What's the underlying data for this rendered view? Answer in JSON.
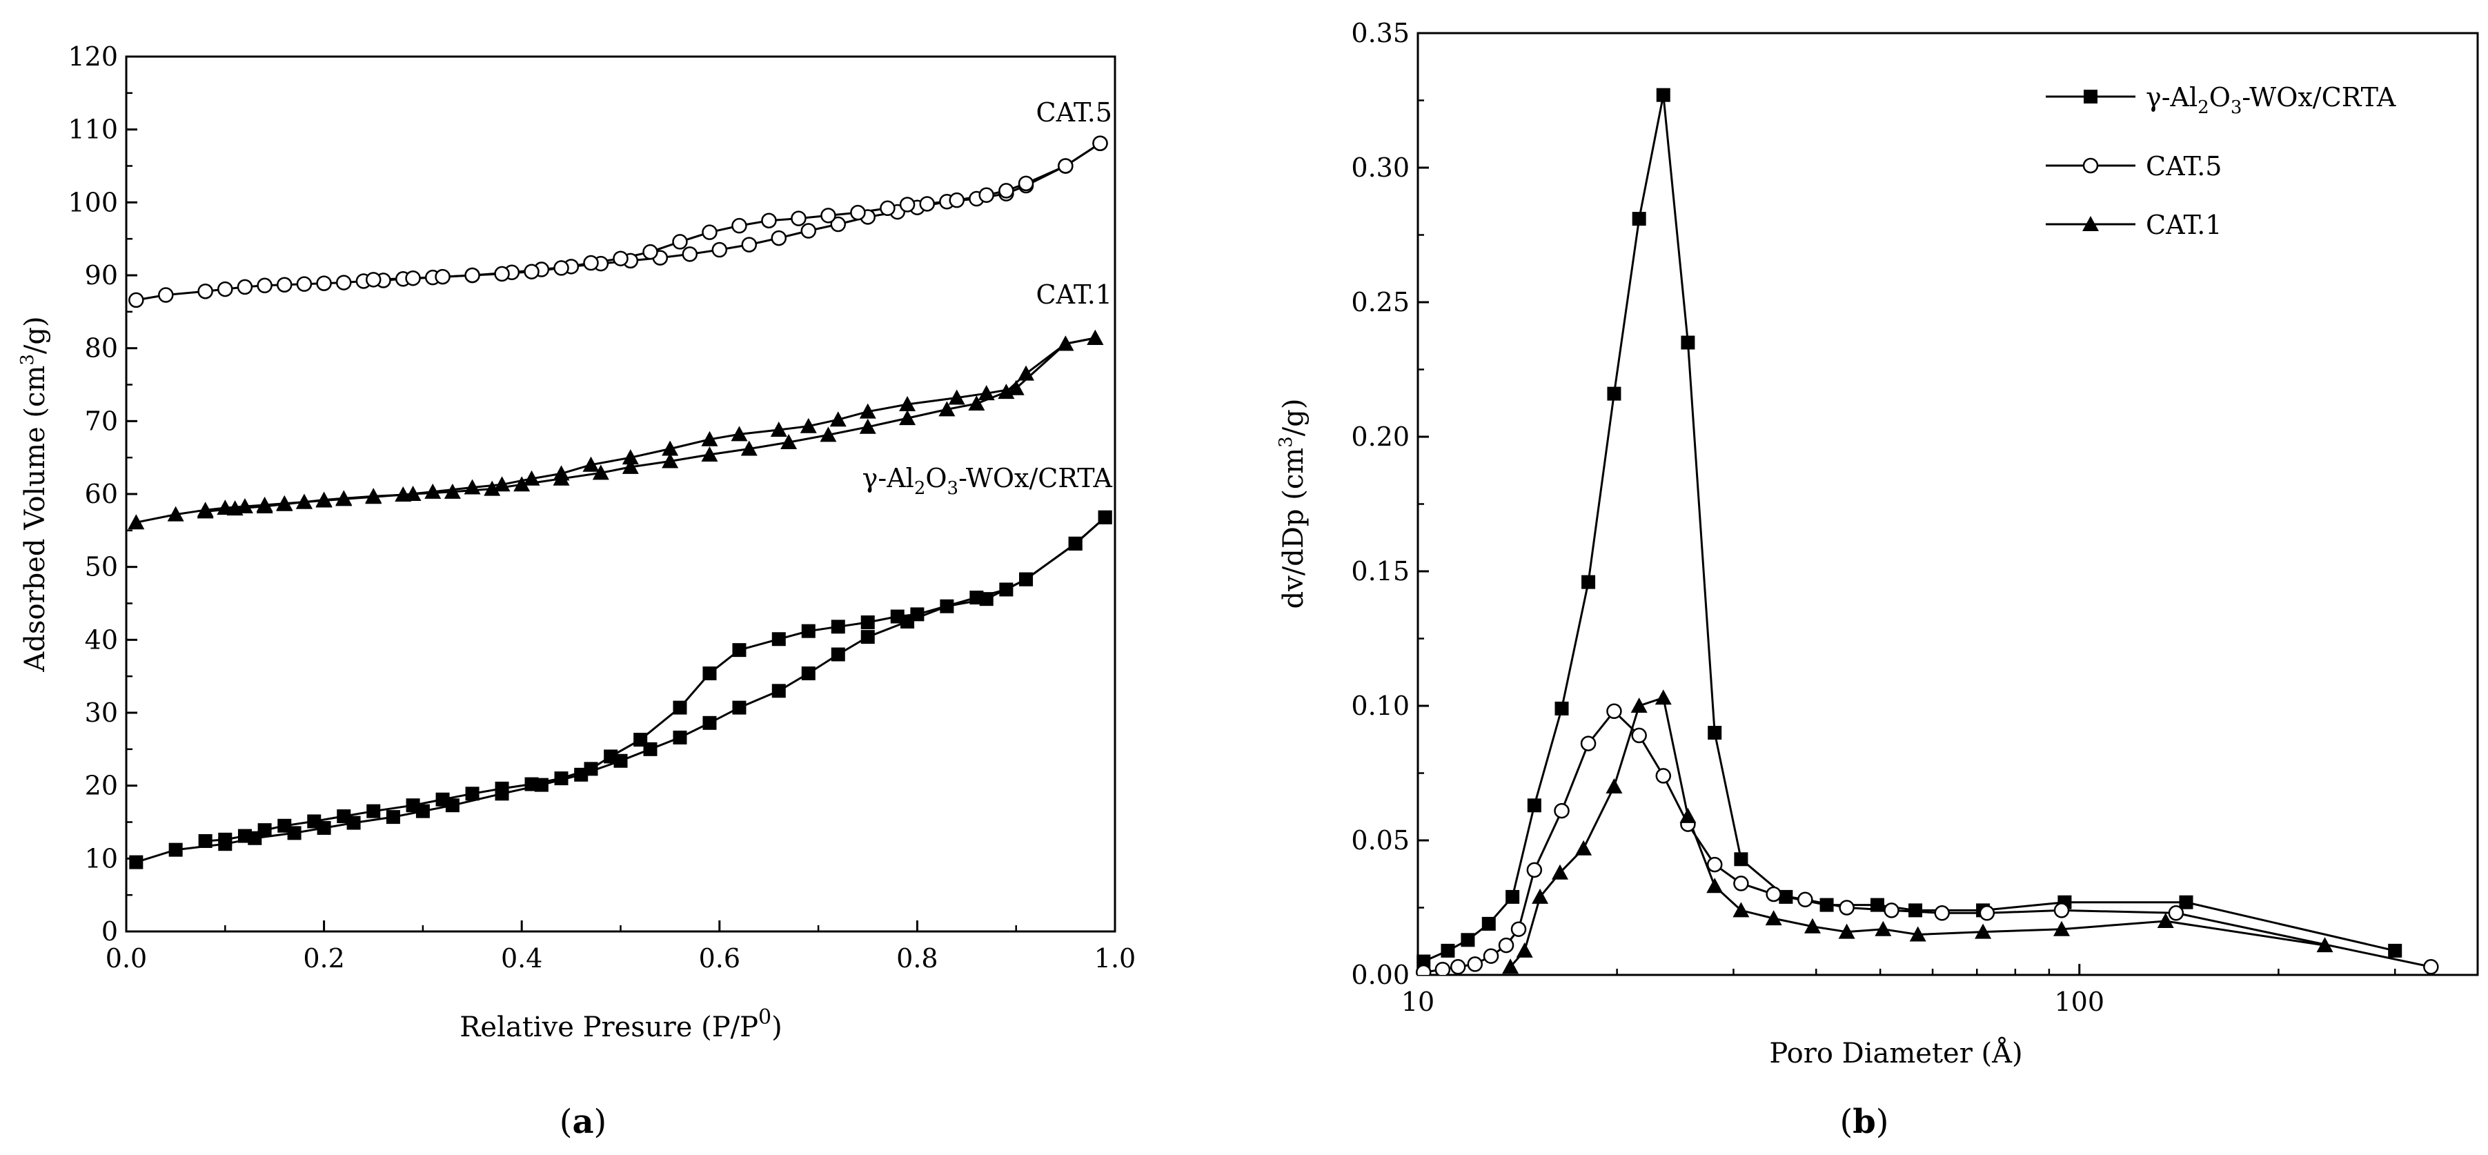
{
  "chart_data": [
    {
      "type": "line",
      "caption": "(a)",
      "xlabel": "Relative Presure (P/P",
      "xlabel_sup": "0",
      "xlabel_end": ")",
      "ylabel": "Adsorbed Volume (cm",
      "ylabel_sup": "3",
      "ylabel_end": "/g)",
      "xlim": [
        0,
        1.0
      ],
      "ylim": [
        0,
        120
      ],
      "xticks": [
        "0.0",
        "0.2",
        "0.4",
        "0.6",
        "0.8",
        "1.0"
      ],
      "yticks": [
        "0",
        "10",
        "20",
        "30",
        "40",
        "50",
        "60",
        "70",
        "80",
        "90",
        "100",
        "110",
        "120"
      ],
      "series": [
        {
          "name": "γ-Al2O3-WOx/CRTA",
          "label_parts": [
            "γ-Al",
            "2",
            "O",
            "3",
            "-WOx/CRTA"
          ],
          "marker": "square",
          "color": "#000000",
          "adsorption": [
            [
              0.01,
              9.5
            ],
            [
              0.05,
              11.2
            ],
            [
              0.1,
              12
            ],
            [
              0.13,
              12.8
            ],
            [
              0.17,
              13.5
            ],
            [
              0.2,
              14.2
            ],
            [
              0.23,
              14.9
            ],
            [
              0.27,
              15.7
            ],
            [
              0.3,
              16.5
            ],
            [
              0.33,
              17.3
            ],
            [
              0.38,
              18.9
            ],
            [
              0.42,
              20.1
            ],
            [
              0.46,
              21.5
            ],
            [
              0.5,
              23.4
            ],
            [
              0.53,
              25
            ],
            [
              0.56,
              26.6
            ],
            [
              0.59,
              28.6
            ],
            [
              0.62,
              30.7
            ],
            [
              0.66,
              33
            ],
            [
              0.69,
              35.4
            ],
            [
              0.72,
              38
            ],
            [
              0.75,
              40.4
            ],
            [
              0.79,
              42.5
            ],
            [
              0.83,
              44.6
            ],
            [
              0.87,
              45.6
            ],
            [
              0.91,
              48.3
            ],
            [
              0.96,
              53.2
            ],
            [
              0.99,
              56.8
            ]
          ],
          "desorption": [
            [
              0.99,
              56.8
            ],
            [
              0.96,
              53.2
            ],
            [
              0.91,
              48.3
            ],
            [
              0.89,
              46.9
            ],
            [
              0.86,
              45.8
            ],
            [
              0.8,
              43.5
            ],
            [
              0.78,
              43.2
            ],
            [
              0.75,
              42.4
            ],
            [
              0.72,
              41.8
            ],
            [
              0.69,
              41.2
            ],
            [
              0.66,
              40.1
            ],
            [
              0.62,
              38.6
            ],
            [
              0.59,
              35.4
            ],
            [
              0.56,
              30.7
            ],
            [
              0.52,
              26.3
            ],
            [
              0.49,
              24
            ],
            [
              0.47,
              22.3
            ],
            [
              0.44,
              21
            ],
            [
              0.41,
              20.2
            ],
            [
              0.38,
              19.6
            ],
            [
              0.35,
              18.9
            ],
            [
              0.32,
              18.1
            ],
            [
              0.29,
              17.3
            ],
            [
              0.25,
              16.5
            ],
            [
              0.22,
              15.8
            ],
            [
              0.19,
              15.1
            ],
            [
              0.16,
              14.5
            ],
            [
              0.14,
              13.9
            ],
            [
              0.12,
              13.1
            ],
            [
              0.1,
              12.6
            ],
            [
              0.08,
              12.4
            ]
          ]
        },
        {
          "name": "CAT.1",
          "marker": "triangle",
          "color": "#000000",
          "adsorption": [
            [
              0.01,
              56.1
            ],
            [
              0.05,
              57.2
            ],
            [
              0.08,
              57.8
            ],
            [
              0.1,
              58.1
            ],
            [
              0.12,
              58.3
            ],
            [
              0.14,
              58.5
            ],
            [
              0.16,
              58.7
            ],
            [
              0.18,
              58.9
            ],
            [
              0.2,
              59.1
            ],
            [
              0.22,
              59.3
            ],
            [
              0.25,
              59.6
            ],
            [
              0.29,
              60
            ],
            [
              0.33,
              60.3
            ],
            [
              0.37,
              60.7
            ],
            [
              0.4,
              61.3
            ],
            [
              0.44,
              62.1
            ],
            [
              0.48,
              62.9
            ],
            [
              0.51,
              63.7
            ],
            [
              0.55,
              64.5
            ],
            [
              0.59,
              65.4
            ],
            [
              0.63,
              66.2
            ],
            [
              0.67,
              67.1
            ],
            [
              0.71,
              68.1
            ],
            [
              0.75,
              69.2
            ],
            [
              0.79,
              70.4
            ],
            [
              0.83,
              71.6
            ],
            [
              0.86,
              72.4
            ],
            [
              0.89,
              74
            ],
            [
              0.91,
              76.5
            ],
            [
              0.95,
              80.6
            ],
            [
              0.98,
              81.4
            ]
          ],
          "desorption": [
            [
              0.98,
              81.4
            ],
            [
              0.95,
              80.6
            ],
            [
              0.9,
              74.5
            ],
            [
              0.87,
              73.8
            ],
            [
              0.84,
              73.2
            ],
            [
              0.79,
              72.3
            ],
            [
              0.75,
              71.3
            ],
            [
              0.72,
              70.2
            ],
            [
              0.69,
              69.3
            ],
            [
              0.66,
              68.8
            ],
            [
              0.62,
              68.2
            ],
            [
              0.59,
              67.5
            ],
            [
              0.55,
              66.2
            ],
            [
              0.51,
              65
            ],
            [
              0.47,
              64
            ],
            [
              0.44,
              62.8
            ],
            [
              0.41,
              62.1
            ],
            [
              0.38,
              61.3
            ],
            [
              0.35,
              60.9
            ],
            [
              0.31,
              60.3
            ],
            [
              0.28,
              59.9
            ],
            [
              0.25,
              59.7
            ],
            [
              0.22,
              59.4
            ],
            [
              0.2,
              59.2
            ],
            [
              0.18,
              58.9
            ],
            [
              0.16,
              58.6
            ],
            [
              0.14,
              58.3
            ],
            [
              0.11,
              58
            ],
            [
              0.08,
              57.6
            ]
          ]
        },
        {
          "name": "CAT.5",
          "marker": "circle",
          "color": "#000000",
          "adsorption": [
            [
              0.01,
              86.6
            ],
            [
              0.04,
              87.3
            ],
            [
              0.08,
              87.8
            ],
            [
              0.1,
              88.1
            ],
            [
              0.12,
              88.4
            ],
            [
              0.14,
              88.6
            ],
            [
              0.16,
              88.7
            ],
            [
              0.18,
              88.8
            ],
            [
              0.2,
              88.9
            ],
            [
              0.22,
              89
            ],
            [
              0.24,
              89.2
            ],
            [
              0.26,
              89.3
            ],
            [
              0.28,
              89.5
            ],
            [
              0.31,
              89.7
            ],
            [
              0.35,
              90
            ],
            [
              0.39,
              90.4
            ],
            [
              0.42,
              90.8
            ],
            [
              0.45,
              91.2
            ],
            [
              0.48,
              91.6
            ],
            [
              0.51,
              92
            ],
            [
              0.54,
              92.4
            ],
            [
              0.57,
              92.9
            ],
            [
              0.6,
              93.5
            ],
            [
              0.63,
              94.2
            ],
            [
              0.66,
              95.1
            ],
            [
              0.69,
              96.1
            ],
            [
              0.72,
              97
            ],
            [
              0.75,
              98
            ],
            [
              0.78,
              98.7
            ],
            [
              0.8,
              99.3
            ],
            [
              0.83,
              100.1
            ],
            [
              0.86,
              100.5
            ],
            [
              0.89,
              101.2
            ],
            [
              0.91,
              102.3
            ],
            [
              0.95,
              105
            ],
            [
              0.985,
              108.1
            ]
          ],
          "desorption": [
            [
              0.985,
              108.1
            ],
            [
              0.95,
              105
            ],
            [
              0.91,
              102.6
            ],
            [
              0.89,
              101.6
            ],
            [
              0.87,
              101
            ],
            [
              0.84,
              100.3
            ],
            [
              0.81,
              99.8
            ],
            [
              0.79,
              99.7
            ],
            [
              0.77,
              99.2
            ],
            [
              0.74,
              98.6
            ],
            [
              0.71,
              98.2
            ],
            [
              0.68,
              97.8
            ],
            [
              0.65,
              97.5
            ],
            [
              0.62,
              96.8
            ],
            [
              0.59,
              95.9
            ],
            [
              0.56,
              94.6
            ],
            [
              0.53,
              93.2
            ],
            [
              0.5,
              92.3
            ],
            [
              0.47,
              91.7
            ],
            [
              0.44,
              91
            ],
            [
              0.41,
              90.5
            ],
            [
              0.38,
              90.2
            ],
            [
              0.35,
              90
            ],
            [
              0.32,
              89.8
            ],
            [
              0.29,
              89.6
            ],
            [
              0.25,
              89.4
            ]
          ]
        }
      ],
      "annotations": [
        "CAT.5",
        "CAT.1"
      ]
    },
    {
      "type": "line",
      "caption": "(b)",
      "xlabel": "Poro Diameter (Å)",
      "ylabel": "dv/dDp (cm",
      "ylabel_sup": "3",
      "ylabel_end": "/g)",
      "xscale": "log",
      "xlim": [
        10,
        400
      ],
      "ylim": [
        0,
        0.35
      ],
      "xticks": [
        "10",
        "100"
      ],
      "yticks": [
        "0.00",
        "0.05",
        "0.10",
        "0.15",
        "0.20",
        "0.25",
        "0.30",
        "0.35"
      ],
      "legend_position": "top-right",
      "series": [
        {
          "name": "γ-Al2O3-WOx/CRTA",
          "label_parts": [
            "γ-Al",
            "2",
            "O",
            "3",
            "-WOx/CRTA"
          ],
          "marker": "square",
          "color": "#000000",
          "points": [
            [
              10.2,
              0.005
            ],
            [
              11.1,
              0.009
            ],
            [
              11.9,
              0.013
            ],
            [
              12.8,
              0.019
            ],
            [
              13.9,
              0.029
            ],
            [
              15,
              0.063
            ],
            [
              16.5,
              0.099
            ],
            [
              18.1,
              0.146
            ],
            [
              19.8,
              0.216
            ],
            [
              21.6,
              0.281
            ],
            [
              23.5,
              0.327
            ],
            [
              25.6,
              0.235
            ],
            [
              28.1,
              0.09
            ],
            [
              30.8,
              0.043
            ],
            [
              36,
              0.029
            ],
            [
              41.5,
              0.026
            ],
            [
              49.5,
              0.026
            ],
            [
              56.5,
              0.024
            ],
            [
              71.5,
              0.024
            ],
            [
              95,
              0.027
            ],
            [
              145,
              0.027
            ],
            [
              300,
              0.009
            ]
          ]
        },
        {
          "name": "CAT.5",
          "marker": "circle",
          "color": "#000000",
          "points": [
            [
              10.2,
              0.001
            ],
            [
              10.9,
              0.002
            ],
            [
              11.5,
              0.003
            ],
            [
              12.2,
              0.004
            ],
            [
              12.9,
              0.007
            ],
            [
              13.6,
              0.011
            ],
            [
              14.2,
              0.017
            ],
            [
              15,
              0.039
            ],
            [
              16.5,
              0.061
            ],
            [
              18.1,
              0.086
            ],
            [
              19.8,
              0.098
            ],
            [
              21.6,
              0.089
            ],
            [
              23.5,
              0.074
            ],
            [
              25.6,
              0.056
            ],
            [
              28.1,
              0.041
            ],
            [
              30.8,
              0.034
            ],
            [
              34.5,
              0.03
            ],
            [
              38.5,
              0.028
            ],
            [
              44.5,
              0.025
            ],
            [
              52,
              0.024
            ],
            [
              62,
              0.023
            ],
            [
              72.5,
              0.023
            ],
            [
              94,
              0.024
            ],
            [
              140,
              0.023
            ],
            [
              340,
              0.003
            ]
          ]
        },
        {
          "name": "CAT.1",
          "marker": "triangle",
          "color": "#000000",
          "points": [
            [
              13.8,
              0.003
            ],
            [
              14.5,
              0.009
            ],
            [
              15.3,
              0.029
            ],
            [
              16.4,
              0.038
            ],
            [
              17.8,
              0.047
            ],
            [
              19.8,
              0.07
            ],
            [
              21.6,
              0.1
            ],
            [
              23.5,
              0.103
            ],
            [
              25.6,
              0.059
            ],
            [
              28.1,
              0.033
            ],
            [
              30.8,
              0.024
            ],
            [
              34.5,
              0.021
            ],
            [
              39.5,
              0.018
            ],
            [
              44.5,
              0.016
            ],
            [
              50.5,
              0.017
            ],
            [
              57,
              0.015
            ],
            [
              71.5,
              0.016
            ],
            [
              94,
              0.017
            ],
            [
              135,
              0.02
            ],
            [
              235,
              0.011
            ]
          ]
        }
      ]
    }
  ]
}
